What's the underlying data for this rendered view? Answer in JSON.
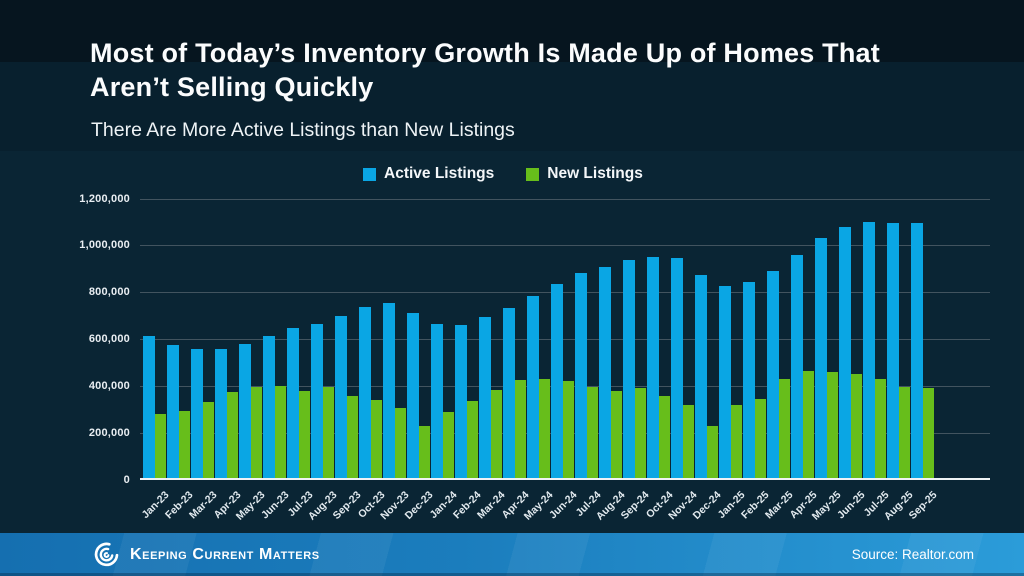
{
  "slide": {
    "title": "Most of Today’s Inventory Growth Is Made Up of Homes That Aren’t Selling Quickly",
    "subtitle": "There Are More Active Listings than New Listings"
  },
  "chart_data": {
    "type": "bar",
    "title": "",
    "xlabel": "",
    "ylabel": "",
    "ylim": [
      0,
      1200000
    ],
    "ytick_step": 200000,
    "grid": true,
    "legend_position": "top",
    "categories": [
      "Jan-23",
      "Feb-23",
      "Mar-23",
      "Apr-23",
      "May-23",
      "Jun-23",
      "Jul-23",
      "Aug-23",
      "Sep-23",
      "Oct-23",
      "Nov-23",
      "Dec-23",
      "Jan-24",
      "Feb-24",
      "Mar-24",
      "Apr-24",
      "May-24",
      "Jun-24",
      "Jul-24",
      "Aug-24",
      "Sep-24",
      "Oct-24",
      "Nov-24",
      "Dec-24",
      "Jan-25",
      "Feb-25",
      "Mar-25",
      "Apr-25",
      "May-25",
      "Jun-25",
      "Jul-25",
      "Aug-25",
      "Sep-25"
    ],
    "series": [
      {
        "name": "Active Listings",
        "color": "#0aa6e4",
        "values": [
          615000,
          578000,
          559000,
          558000,
          580000,
          615000,
          647000,
          668000,
          701000,
          738000,
          754000,
          712000,
          665000,
          661000,
          694000,
          734000,
          787000,
          839000,
          883000,
          908000,
          941000,
          954000,
          950000,
          875000,
          829000,
          847000,
          894000,
          959000,
          1032000,
          1079000,
          1100000,
          1099000,
          1098000
        ]
      },
      {
        "name": "New Listings",
        "color": "#67be1b",
        "values": [
          281000,
          296000,
          333000,
          376000,
          397000,
          400000,
          380000,
          396000,
          358000,
          341000,
          309000,
          231000,
          289000,
          336000,
          386000,
          426000,
          430000,
          422000,
          398000,
          380000,
          393000,
          357000,
          319000,
          231000,
          319000,
          346000,
          433000,
          466000,
          463000,
          451000,
          430000,
          399000,
          391000
        ]
      }
    ]
  },
  "footer": {
    "brand": "Keeping Current Matters",
    "source": "Source: Realtor.com",
    "bar_color_left": "#156fb0",
    "bar_color_right": "#2b9cd9"
  }
}
